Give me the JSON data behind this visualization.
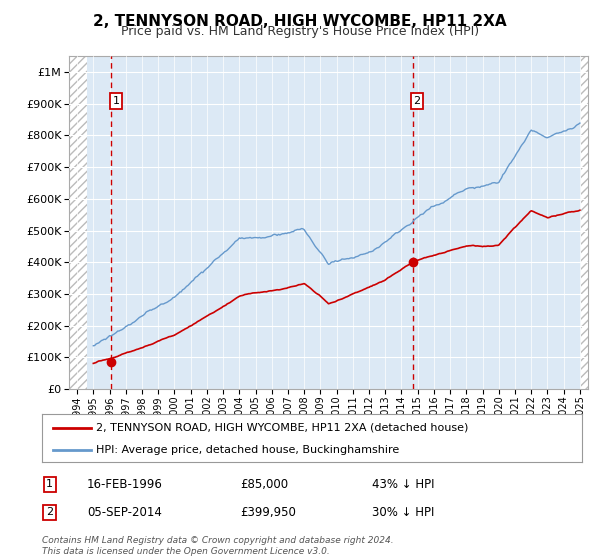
{
  "title": "2, TENNYSON ROAD, HIGH WYCOMBE, HP11 2XA",
  "subtitle": "Price paid vs. HM Land Registry's House Price Index (HPI)",
  "title_fontsize": 11,
  "subtitle_fontsize": 9,
  "xlim": [
    1993.5,
    2025.5
  ],
  "ylim": [
    0,
    1050000
  ],
  "yticks": [
    0,
    100000,
    200000,
    300000,
    400000,
    500000,
    600000,
    700000,
    800000,
    900000,
    1000000
  ],
  "ytick_labels": [
    "£0",
    "£100K",
    "£200K",
    "£300K",
    "£400K",
    "£500K",
    "£600K",
    "£700K",
    "£800K",
    "£900K",
    "£1M"
  ],
  "bg_color": "#dce9f5",
  "hatch_color": "#bbbbbb",
  "grid_color": "#ffffff",
  "sale1_x": 1996.12,
  "sale1_y": 85000,
  "sale1_label": "1",
  "sale1_date": "16-FEB-1996",
  "sale1_price": "£85,000",
  "sale1_note": "43% ↓ HPI",
  "sale2_x": 2014.68,
  "sale2_y": 399950,
  "sale2_label": "2",
  "sale2_date": "05-SEP-2014",
  "sale2_price": "£399,950",
  "sale2_note": "30% ↓ HPI",
  "line1_color": "#cc0000",
  "line2_color": "#6699cc",
  "dot_color": "#cc0000",
  "dashed_line_color": "#cc0000",
  "legend_line1": "2, TENNYSON ROAD, HIGH WYCOMBE, HP11 2XA (detached house)",
  "legend_line2": "HPI: Average price, detached house, Buckinghamshire",
  "footer": "Contains HM Land Registry data © Crown copyright and database right 2024.\nThis data is licensed under the Open Government Licence v3.0.",
  "hpi_years": [
    1995.0,
    1995.083,
    1995.167,
    1995.25,
    1995.333,
    1995.417,
    1995.5,
    1995.583,
    1995.667,
    1995.75,
    1995.833,
    1995.917,
    1996.0,
    1996.083,
    1996.167,
    1996.25,
    1996.333,
    1996.417,
    1996.5,
    1996.583,
    1996.667,
    1996.75,
    1996.833,
    1996.917,
    1997.0,
    1997.083,
    1997.167,
    1997.25,
    1997.333,
    1997.417,
    1997.5,
    1997.583,
    1997.667,
    1997.75,
    1997.833,
    1997.917,
    1998.0,
    1998.083,
    1998.167,
    1998.25,
    1998.333,
    1998.417,
    1998.5,
    1998.583,
    1998.667,
    1998.75,
    1998.833,
    1998.917,
    1999.0,
    1999.083,
    1999.167,
    1999.25,
    1999.333,
    1999.417,
    1999.5,
    1999.583,
    1999.667,
    1999.75,
    1999.833,
    1999.917,
    2000.0,
    2000.083,
    2000.167,
    2000.25,
    2000.333,
    2000.417,
    2000.5,
    2000.583,
    2000.667,
    2000.75,
    2000.833,
    2000.917,
    2001.0,
    2001.083,
    2001.167,
    2001.25,
    2001.333,
    2001.417,
    2001.5,
    2001.583,
    2001.667,
    2001.75,
    2001.833,
    2001.917,
    2002.0,
    2002.083,
    2002.167,
    2002.25,
    2002.333,
    2002.417,
    2002.5,
    2002.583,
    2002.667,
    2002.75,
    2002.833,
    2002.917,
    2003.0,
    2003.083,
    2003.167,
    2003.25,
    2003.333,
    2003.417,
    2003.5,
    2003.583,
    2003.667,
    2003.75,
    2003.833,
    2003.917,
    2004.0,
    2004.083,
    2004.167,
    2004.25,
    2004.333,
    2004.417,
    2004.5,
    2004.583,
    2004.667,
    2004.75,
    2004.833,
    2004.917,
    2005.0,
    2005.083,
    2005.167,
    2005.25,
    2005.333,
    2005.417,
    2005.5,
    2005.583,
    2005.667,
    2005.75,
    2005.833,
    2005.917,
    2006.0,
    2006.083,
    2006.167,
    2006.25,
    2006.333,
    2006.417,
    2006.5,
    2006.583,
    2006.667,
    2006.75,
    2006.833,
    2006.917,
    2007.0,
    2007.083,
    2007.167,
    2007.25,
    2007.333,
    2007.417,
    2007.5,
    2007.583,
    2007.667,
    2007.75,
    2007.833,
    2007.917,
    2008.0,
    2008.083,
    2008.167,
    2008.25,
    2008.333,
    2008.417,
    2008.5,
    2008.583,
    2008.667,
    2008.75,
    2008.833,
    2008.917,
    2009.0,
    2009.083,
    2009.167,
    2009.25,
    2009.333,
    2009.417,
    2009.5,
    2009.583,
    2009.667,
    2009.75,
    2009.833,
    2009.917,
    2010.0,
    2010.083,
    2010.167,
    2010.25,
    2010.333,
    2010.417,
    2010.5,
    2010.583,
    2010.667,
    2010.75,
    2010.833,
    2010.917,
    2011.0,
    2011.083,
    2011.167,
    2011.25,
    2011.333,
    2011.417,
    2011.5,
    2011.583,
    2011.667,
    2011.75,
    2011.833,
    2011.917,
    2012.0,
    2012.083,
    2012.167,
    2012.25,
    2012.333,
    2012.417,
    2012.5,
    2012.583,
    2012.667,
    2012.75,
    2012.833,
    2012.917,
    2013.0,
    2013.083,
    2013.167,
    2013.25,
    2013.333,
    2013.417,
    2013.5,
    2013.583,
    2013.667,
    2013.75,
    2013.833,
    2013.917,
    2014.0,
    2014.083,
    2014.167,
    2014.25,
    2014.333,
    2014.417,
    2014.5,
    2014.583,
    2014.667,
    2014.75,
    2014.833,
    2014.917,
    2015.0,
    2015.083,
    2015.167,
    2015.25,
    2015.333,
    2015.417,
    2015.5,
    2015.583,
    2015.667,
    2015.75,
    2015.833,
    2015.917,
    2016.0,
    2016.083,
    2016.167,
    2016.25,
    2016.333,
    2016.417,
    2016.5,
    2016.583,
    2016.667,
    2016.75,
    2016.833,
    2016.917,
    2017.0,
    2017.083,
    2017.167,
    2017.25,
    2017.333,
    2017.417,
    2017.5,
    2017.583,
    2017.667,
    2017.75,
    2017.833,
    2017.917,
    2018.0,
    2018.083,
    2018.167,
    2018.25,
    2018.333,
    2018.417,
    2018.5,
    2018.583,
    2018.667,
    2018.75,
    2018.833,
    2018.917,
    2019.0,
    2019.083,
    2019.167,
    2019.25,
    2019.333,
    2019.417,
    2019.5,
    2019.583,
    2019.667,
    2019.75,
    2019.833,
    2019.917,
    2020.0,
    2020.083,
    2020.167,
    2020.25,
    2020.333,
    2020.417,
    2020.5,
    2020.583,
    2020.667,
    2020.75,
    2020.833,
    2020.917,
    2021.0,
    2021.083,
    2021.167,
    2021.25,
    2021.333,
    2021.417,
    2021.5,
    2021.583,
    2021.667,
    2021.75,
    2021.833,
    2021.917,
    2022.0,
    2022.083,
    2022.167,
    2022.25,
    2022.333,
    2022.417,
    2022.5,
    2022.583,
    2022.667,
    2022.75,
    2022.833,
    2022.917,
    2023.0,
    2023.083,
    2023.167,
    2023.25,
    2023.333,
    2023.417,
    2023.5,
    2023.583,
    2023.667,
    2023.75,
    2023.833,
    2023.917,
    2024.0,
    2024.083,
    2024.167,
    2024.25,
    2024.333,
    2024.417,
    2024.5,
    2024.583,
    2024.667,
    2024.75,
    2024.833,
    2024.917,
    2025.0
  ]
}
